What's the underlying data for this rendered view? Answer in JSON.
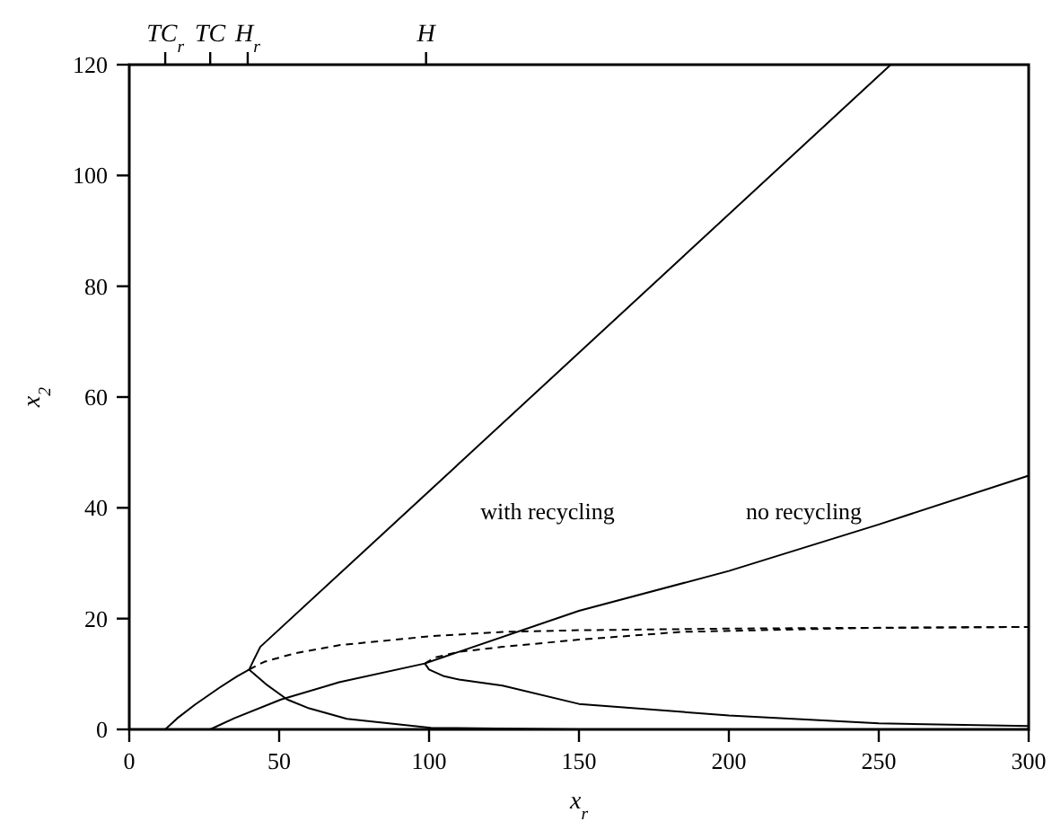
{
  "chart_data": {
    "type": "line",
    "xlabel": "x$_{r}$",
    "ylabel": "x$_{2}$",
    "xlim": [
      0,
      300
    ],
    "xticks": [
      0,
      50,
      100,
      150,
      200,
      250,
      300
    ],
    "ylim": [
      0,
      120
    ],
    "yticks": [
      0,
      20,
      40,
      60,
      80,
      100,
      120
    ],
    "grid": false,
    "marker": "none",
    "series": [
      {
        "color": "#000000",
        "line_style": "solid",
        "x": [
          12,
          16,
          22,
          30,
          36,
          40,
          41.5,
          43.7,
          78.6,
          254
        ],
        "values": [
          0,
          2,
          4.5,
          7.5,
          9.6,
          10.8,
          12.5,
          14.9,
          32.3,
          120
        ]
      },
      {
        "color": "#000000",
        "line_style": "solid",
        "x": [
          40,
          46,
          52.7,
          60,
          72.6,
          100.6,
          150
        ],
        "values": [
          10.8,
          8,
          5.4,
          3.8,
          1.9,
          0.3,
          0
        ]
      },
      {
        "color": "#000000",
        "line_style": "dashed",
        "x": [
          40,
          45,
          55,
          70,
          100,
          124.5,
          150,
          200,
          300
        ],
        "values": [
          10.8,
          12.2,
          13.7,
          15.2,
          16.8,
          17.6,
          17.9,
          18.2,
          18.5
        ]
      },
      {
        "color": "#000000",
        "line_style": "solid",
        "x": [
          27,
          35,
          50.6,
          70,
          98.6,
          105,
          150,
          200,
          250,
          300
        ],
        "values": [
          0,
          2,
          5.4,
          8.5,
          11.9,
          13.1,
          21.4,
          28.6,
          37,
          45.8
        ]
      },
      {
        "color": "#000000",
        "line_style": "solid",
        "x": [
          98.6,
          100,
          105,
          110,
          124.5,
          150,
          200,
          250,
          300
        ],
        "values": [
          11.9,
          10.8,
          9.6,
          9,
          7.9,
          4.6,
          2.5,
          1.1,
          0.6
        ]
      },
      {
        "color": "#000000",
        "line_style": "dashed",
        "x": [
          98.6,
          102,
          110,
          124.5,
          150,
          184,
          244,
          300
        ],
        "values": [
          11.9,
          13,
          14,
          14.9,
          16.2,
          17.6,
          18.3,
          18.5
        ]
      }
    ],
    "annotations": [
      "with recycling",
      "no recycling",
      "TC$_{r}$",
      {
        "text": "TC",
        "x": 27
      },
      "H$_{r}$",
      {
        "text": "H",
        "x": 99
      }
    ]
  }
}
